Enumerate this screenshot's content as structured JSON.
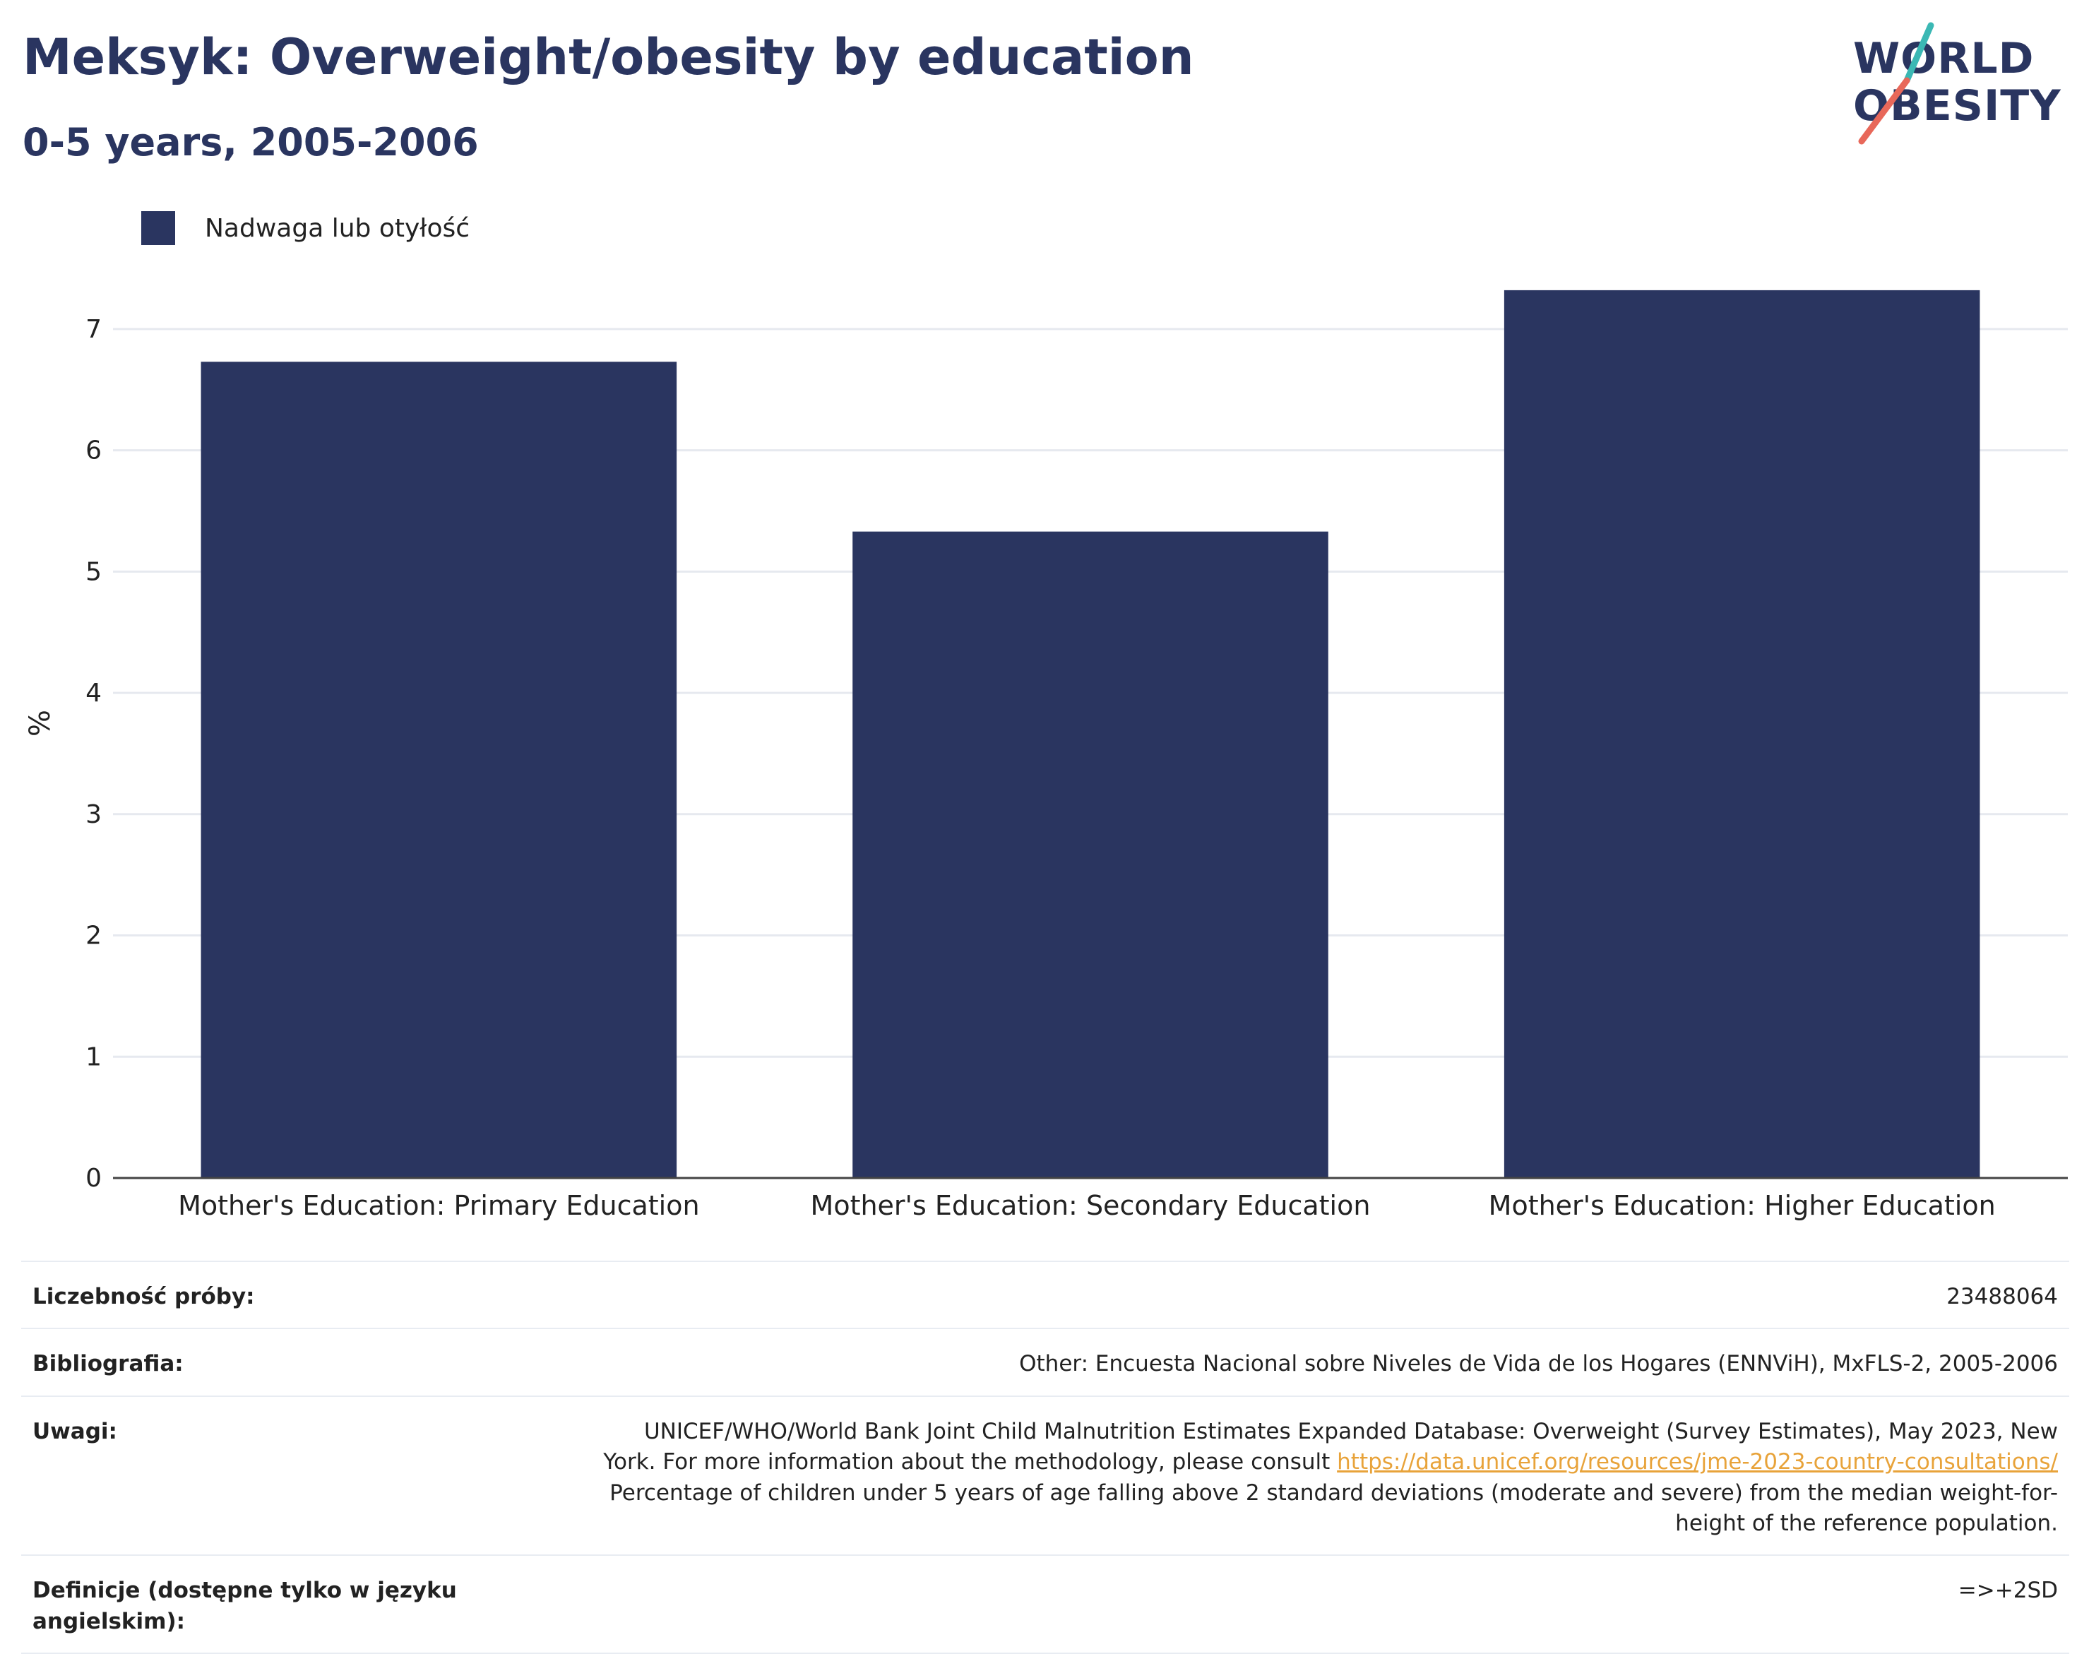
{
  "header": {
    "title": "Meksyk: Overweight/obesity by education",
    "subtitle": "0-5 years, 2005-2006"
  },
  "logo": {
    "line1": "WORLD",
    "line2": "OBESITY"
  },
  "colors": {
    "bar": "#2a3560",
    "title": "#2a3560",
    "gridline": "#e6e9ef",
    "axis": "#444444",
    "link": "#e8a33a",
    "logo_teal": "#3bb8b4",
    "logo_coral": "#e8685a"
  },
  "chart_data": {
    "type": "bar",
    "categories": [
      "Mother's Education: Primary Education",
      "Mother's Education: Secondary Education",
      "Mother's Education: Higher Education"
    ],
    "series": [
      {
        "name": "Nadwaga lub otyłość",
        "values": [
          6.73,
          5.33,
          7.32
        ]
      }
    ],
    "ylabel": "%",
    "ylim": [
      0,
      7.5
    ],
    "yticks": [
      0,
      1,
      2,
      3,
      4,
      5,
      6,
      7
    ],
    "grid": true,
    "legend_position": "top-left"
  },
  "footer": {
    "rows": [
      {
        "label": "Liczebność próby:",
        "value": "23488064"
      },
      {
        "label": "Bibliografia:",
        "value": "Other: Encuesta Nacional sobre Niveles de Vida de los Hogares (ENNViH), MxFLS-2, 2005-2006"
      },
      {
        "label": "Uwagi:",
        "value_pre": "UNICEF/WHO/World Bank Joint Child Malnutrition Estimates Expanded Database: Overweight (Survey Estimates), May 2023, New York. For more information about the methodology, please consult",
        "link": "https://data.unicef.org/resources/jme-2023-country-consultations/",
        "value_post": "Percentage of children under 5 years of age falling above 2 standard deviations (moderate and severe) from the median weight-for-height of the reference population."
      },
      {
        "label": "Definicje (dostępne tylko w języku angielskim):",
        "value": "=>+2SD"
      }
    ]
  }
}
